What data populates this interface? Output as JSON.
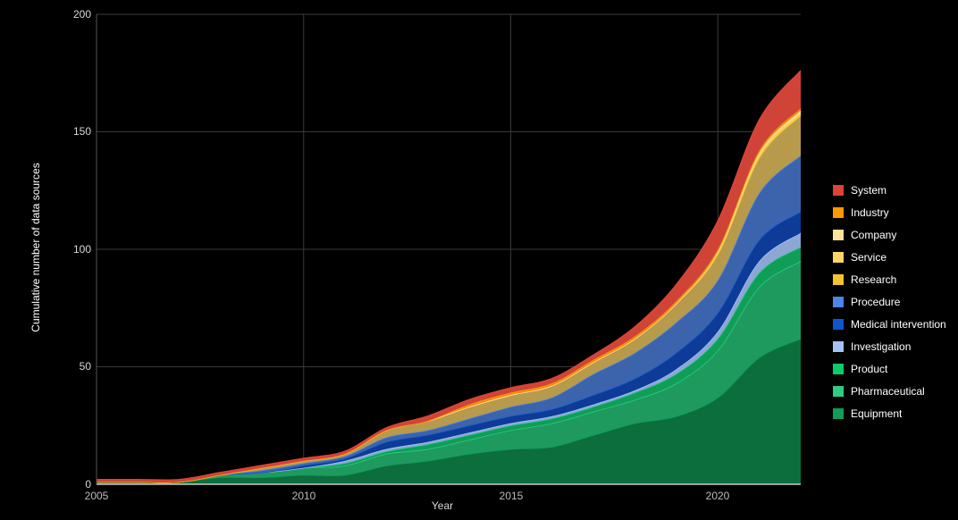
{
  "chart_data": {
    "type": "area",
    "stacked": true,
    "title": "",
    "xlabel": "Year",
    "ylabel": "Cumulative number of data sources",
    "ylim": [
      0,
      200
    ],
    "xlim": [
      2005,
      2022
    ],
    "y_ticks": [
      "0",
      "50",
      "100",
      "150",
      "200"
    ],
    "x_ticks": [
      "2005",
      "2010",
      "2015",
      "2020"
    ],
    "grid": true,
    "legend_position": "right",
    "x": [
      2005,
      2006,
      2007,
      2008,
      2009,
      2010,
      2011,
      2012,
      2013,
      2014,
      2015,
      2016,
      2017,
      2018,
      2019,
      2020,
      2021,
      2022
    ],
    "series": [
      {
        "name": "Equipment",
        "color": "#0b6e3c",
        "values": [
          1,
          1,
          1,
          3,
          3,
          4,
          4,
          8,
          10,
          13,
          15,
          16,
          21,
          26,
          29,
          37,
          54,
          62
        ]
      },
      {
        "name": "Pharmaceutical",
        "color": "#1e9a5e",
        "values": [
          0,
          0,
          0,
          1,
          2,
          3,
          4,
          5,
          5,
          6,
          8,
          10,
          10,
          10,
          14,
          20,
          30,
          33
        ]
      },
      {
        "name": "Product",
        "color": "#0f9d58",
        "values": [
          0,
          0,
          0,
          0,
          0,
          0,
          1,
          1,
          2,
          2,
          2,
          2,
          2,
          3,
          4,
          5,
          6,
          6
        ]
      },
      {
        "name": "Investigation",
        "color": "#8ea6d4",
        "values": [
          0,
          0,
          0,
          0,
          0,
          0,
          1,
          1,
          1,
          1,
          1,
          1,
          1,
          1,
          2,
          3,
          5,
          6
        ]
      },
      {
        "name": "Medical intervention",
        "color": "#0d3b97",
        "values": [
          0,
          0,
          0,
          0,
          0,
          1,
          1,
          3,
          3,
          3,
          3,
          3,
          4,
          5,
          7,
          8,
          9,
          9
        ]
      },
      {
        "name": "Procedure",
        "color": "#3b64ad",
        "values": [
          0,
          0,
          0,
          0,
          1,
          1,
          1,
          2,
          2,
          3,
          4,
          5,
          9,
          11,
          13,
          14,
          20,
          24
        ]
      },
      {
        "name": "Research",
        "color": "#b89a4c",
        "values": [
          0,
          0,
          0,
          0,
          1,
          1,
          1,
          3,
          4,
          5,
          5,
          5,
          5,
          6,
          8,
          11,
          15,
          17
        ]
      },
      {
        "name": "Service",
        "color": "#f6c64a",
        "values": [
          0,
          0,
          0,
          0,
          0,
          0,
          0,
          0,
          0,
          0,
          0,
          0,
          0,
          0,
          0,
          1,
          1,
          1
        ]
      },
      {
        "name": "Company",
        "color": "#ffe08a",
        "values": [
          0,
          0,
          0,
          0,
          0,
          0,
          0,
          0,
          0,
          0,
          0,
          0,
          0,
          0,
          0,
          0,
          1,
          1
        ]
      },
      {
        "name": "Industry",
        "color": "#f08a0c",
        "values": [
          0,
          0,
          0,
          0,
          0,
          0,
          0,
          0,
          0,
          1,
          1,
          1,
          1,
          1,
          1,
          1,
          1,
          1
        ]
      },
      {
        "name": "System",
        "color": "#d04437",
        "values": [
          1,
          1,
          1,
          1,
          1,
          1,
          1,
          1,
          2,
          2,
          2,
          2,
          2,
          4,
          7,
          12,
          13,
          16
        ]
      }
    ]
  },
  "legend": {
    "items": [
      {
        "label": "System",
        "color": "#db4437"
      },
      {
        "label": "Industry",
        "color": "#ff9800"
      },
      {
        "label": "Company",
        "color": "#ffe29a"
      },
      {
        "label": "Service",
        "color": "#ffd662"
      },
      {
        "label": "Research",
        "color": "#f4c430"
      },
      {
        "label": "Procedure",
        "color": "#4a86e8"
      },
      {
        "label": "Medical intervention",
        "color": "#1155cc"
      },
      {
        "label": "Investigation",
        "color": "#a4c2f4"
      },
      {
        "label": "Product",
        "color": "#0ccc68"
      },
      {
        "label": "Pharmaceutical",
        "color": "#2ecc80"
      },
      {
        "label": "Equipment",
        "color": "#0f9d58"
      }
    ]
  }
}
